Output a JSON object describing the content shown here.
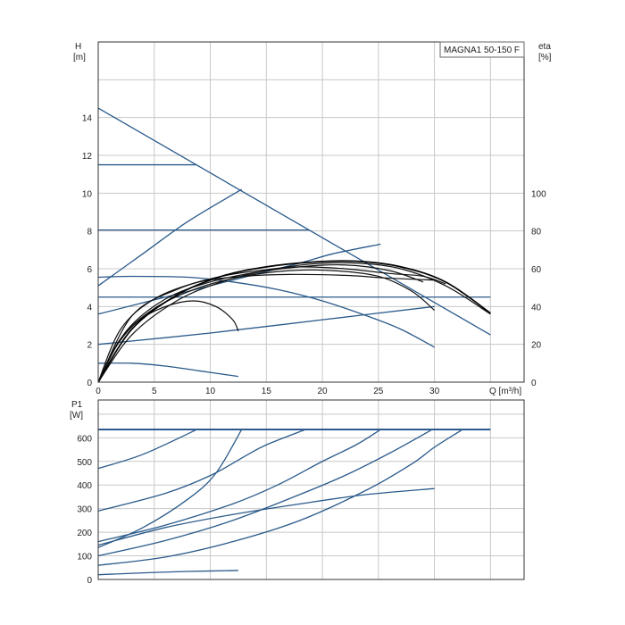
{
  "chart_data": [
    {
      "type": "line",
      "title": "MAGNA1 50-150 F",
      "ylabel_left": "H",
      "ylabel_left_unit": "[m]",
      "ylabel_right": "eta",
      "ylabel_right_unit": "[%]",
      "xlabel": "Q [m³/h]",
      "xlim": [
        0,
        38
      ],
      "ylim": [
        0,
        18
      ],
      "eta_ylim": [
        0,
        180
      ],
      "grid": true,
      "x_ticks": [
        0,
        5,
        10,
        15,
        20,
        25,
        30
      ],
      "y_ticks": [
        0,
        2,
        4,
        6,
        8,
        10,
        12,
        14
      ],
      "eta_ticks": [
        0,
        20,
        40,
        60,
        80,
        100
      ],
      "series": [
        {
          "style": "blue",
          "points": [
            [
              0,
              14.5
            ],
            [
              35,
              2.5
            ]
          ]
        },
        {
          "style": "blue",
          "points": [
            [
              0,
              11.5
            ],
            [
              8.8,
              11.5
            ]
          ]
        },
        {
          "style": "blue",
          "points": [
            [
              0,
              8.05
            ],
            [
              18.8,
              8.05
            ]
          ]
        },
        {
          "style": "blue",
          "points": [
            [
              0,
              4.5
            ],
            [
              35,
              4.5
            ]
          ]
        },
        {
          "style": "blue",
          "points": [
            [
              0,
              5.1
            ],
            [
              4,
              6.8
            ],
            [
              8,
              8.5
            ],
            [
              12.8,
              10.2
            ]
          ]
        },
        {
          "style": "blue",
          "points": [
            [
              0,
              3.6
            ],
            [
              6,
              4.5
            ],
            [
              12,
              5.4
            ],
            [
              18,
              6.3
            ],
            [
              21,
              6.8
            ],
            [
              25.2,
              7.3
            ]
          ]
        },
        {
          "style": "blue",
          "points": [
            [
              0,
              2.0
            ],
            [
              10,
              2.6
            ],
            [
              20,
              3.3
            ],
            [
              30,
              4.0
            ]
          ]
        },
        {
          "style": "blue",
          "points": [
            [
              0,
              5.55
            ],
            [
              3,
              5.6
            ],
            [
              8,
              5.55
            ],
            [
              12,
              5.3
            ],
            [
              16,
              4.9
            ],
            [
              20,
              4.3
            ],
            [
              24,
              3.5
            ],
            [
              27,
              2.8
            ],
            [
              30,
              1.85
            ]
          ]
        },
        {
          "style": "blue",
          "points": [
            [
              0,
              1.0
            ],
            [
              3,
              1.0
            ],
            [
              6,
              0.85
            ],
            [
              9,
              0.6
            ],
            [
              12.5,
              0.3
            ]
          ]
        },
        {
          "style": "black",
          "points": [
            [
              0,
              0
            ],
            [
              1.5,
              1.8
            ],
            [
              3.5,
              3.2
            ],
            [
              6,
              4.0
            ],
            [
              8.5,
              4.3
            ],
            [
              10.5,
              4.0
            ],
            [
              12,
              3.3
            ],
            [
              12.5,
              2.7
            ]
          ]
        },
        {
          "style": "black",
          "points": [
            [
              0,
              0
            ],
            [
              2,
              2.8
            ],
            [
              5,
              4.4
            ],
            [
              9,
              5.3
            ],
            [
              13,
              5.6
            ],
            [
              17,
              5.7
            ],
            [
              22,
              5.65
            ],
            [
              26,
              5.5
            ],
            [
              30,
              5.4
            ]
          ]
        },
        {
          "style": "black",
          "points": [
            [
              0,
              0
            ],
            [
              2,
              2.3
            ],
            [
              5,
              3.9
            ],
            [
              9,
              5.0
            ],
            [
              13,
              5.6
            ],
            [
              17,
              5.9
            ],
            [
              21,
              5.9
            ],
            [
              25,
              5.6
            ],
            [
              28,
              4.8
            ],
            [
              30,
              3.8
            ]
          ]
        },
        {
          "style": "black",
          "points": [
            [
              0,
              0
            ],
            [
              3,
              3.5
            ],
            [
              7,
              4.9
            ],
            [
              11,
              5.6
            ],
            [
              15,
              5.95
            ],
            [
              18,
              6.1
            ],
            [
              22,
              6.0
            ],
            [
              26,
              5.75
            ],
            [
              29,
              5.6
            ],
            [
              31,
              5.2
            ]
          ]
        },
        {
          "style": "black",
          "points": [
            [
              0,
              0
            ],
            [
              2.5,
              2.7
            ],
            [
              6,
              4.4
            ],
            [
              10,
              5.3
            ],
            [
              14,
              5.8
            ],
            [
              18,
              6.1
            ],
            [
              22,
              6.2
            ],
            [
              26,
              5.9
            ],
            [
              29,
              5.3
            ]
          ]
        },
        {
          "style": "black-bold",
          "points": [
            [
              0,
              0
            ],
            [
              3,
              2.8
            ],
            [
              7,
              4.6
            ],
            [
              11,
              5.6
            ],
            [
              15,
              6.1
            ],
            [
              19,
              6.35
            ],
            [
              23,
              6.4
            ],
            [
              27,
              6.1
            ],
            [
              31,
              5.3
            ],
            [
              35,
              3.65
            ]
          ]
        },
        {
          "style": "black",
          "points": [
            [
              0,
              0
            ],
            [
              3,
              2.5
            ],
            [
              7,
              4.3
            ],
            [
              11,
              5.3
            ],
            [
              15,
              5.9
            ],
            [
              19,
              6.25
            ],
            [
              23,
              6.3
            ],
            [
              27,
              6.0
            ],
            [
              31,
              5.1
            ],
            [
              35,
              3.6
            ]
          ]
        }
      ],
      "legend_text": "MAGNA1 50-150 F"
    },
    {
      "type": "line",
      "ylabel": "P1",
      "ylabel_unit": "[W]",
      "xlim": [
        0,
        38
      ],
      "ylim": [
        0,
        760
      ],
      "grid": true,
      "y_ticks": [
        0,
        100,
        200,
        300,
        400,
        500,
        600
      ],
      "series": [
        {
          "style": "blue-bold",
          "points": [
            [
              0,
              635
            ],
            [
              35,
              635
            ]
          ]
        },
        {
          "style": "blue",
          "points": [
            [
              0,
              470
            ],
            [
              4,
              530
            ],
            [
              8.8,
              635
            ]
          ]
        },
        {
          "style": "blue",
          "points": [
            [
              0,
              290
            ],
            [
              6,
              365
            ],
            [
              10,
              440
            ],
            [
              13.2,
              525
            ],
            [
              15,
              570
            ],
            [
              18.5,
              635
            ]
          ]
        },
        {
          "style": "blue",
          "points": [
            [
              0,
              135
            ],
            [
              4,
              220
            ],
            [
              8,
              340
            ],
            [
              10.5,
              450
            ],
            [
              12.8,
              635
            ]
          ]
        },
        {
          "style": "blue",
          "points": [
            [
              0,
              160
            ],
            [
              6,
              230
            ],
            [
              12,
              320
            ],
            [
              16,
              400
            ],
            [
              20,
              500
            ],
            [
              23,
              570
            ],
            [
              25.2,
              635
            ]
          ]
        },
        {
          "style": "blue",
          "points": [
            [
              0,
              100
            ],
            [
              6,
              165
            ],
            [
              12,
              250
            ],
            [
              18,
              360
            ],
            [
              22,
              440
            ],
            [
              26,
              535
            ],
            [
              29.8,
              635
            ]
          ]
        },
        {
          "style": "blue",
          "points": [
            [
              0,
              60
            ],
            [
              6,
              95
            ],
            [
              12,
              160
            ],
            [
              18,
              250
            ],
            [
              24,
              380
            ],
            [
              28,
              490
            ],
            [
              30,
              560
            ],
            [
              32.5,
              635
            ]
          ]
        },
        {
          "style": "blue",
          "points": [
            [
              0,
              145
            ],
            [
              6,
              220
            ],
            [
              12,
              275
            ],
            [
              18,
              320
            ],
            [
              24,
              360
            ],
            [
              30,
              385
            ]
          ]
        },
        {
          "style": "blue",
          "points": [
            [
              0,
              20
            ],
            [
              4,
              28
            ],
            [
              8,
              34
            ],
            [
              12.5,
              38
            ]
          ]
        }
      ]
    }
  ]
}
